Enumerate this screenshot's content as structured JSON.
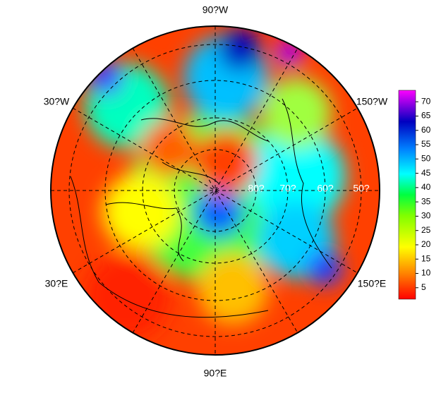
{
  "map": {
    "longitude_labels": [
      "90?W",
      "30?W",
      "150?W",
      "30?E",
      "150?E",
      "90?E"
    ],
    "latitude_labels": [
      "80?",
      "70?",
      "60?",
      "50?"
    ],
    "colorbar": {
      "lim": [
        1,
        74
      ],
      "ticks": [
        5,
        10,
        15,
        20,
        25,
        30,
        35,
        40,
        45,
        50,
        55,
        60,
        65,
        70
      ]
    }
  }
}
